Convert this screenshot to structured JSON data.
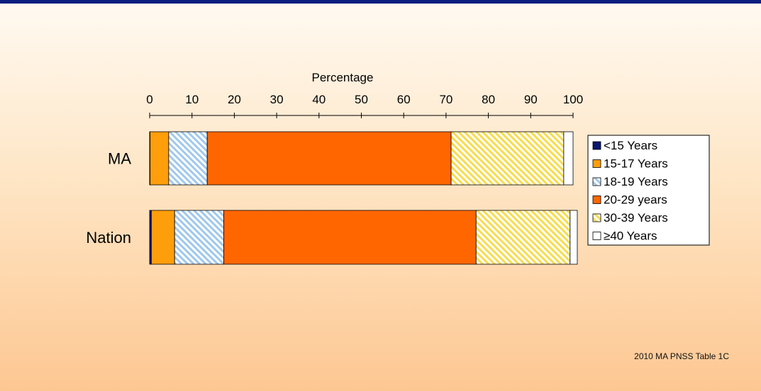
{
  "source_note": "2010 MA PNSS Table 1C",
  "colors": {
    "under_15": "#0a1670",
    "age_15_17": "#ff9e0b",
    "age_18_19": "#9fc8ee",
    "age_20_29": "#ff6600",
    "age_30_39": "#f7dc4d",
    "age_40_plus": "#ffffff"
  },
  "chart_data": {
    "type": "bar",
    "orientation": "horizontal",
    "stacked": true,
    "xlabel": "Percentage",
    "xlim": [
      0,
      100
    ],
    "x_ticks": [
      "0",
      "10",
      "20",
      "30",
      "40",
      "50",
      "60",
      "70",
      "80",
      "90",
      "100"
    ],
    "categories": [
      "MA",
      "Nation"
    ],
    "legend_position": "right",
    "series": [
      {
        "name": "<15 Years",
        "key": "under_15",
        "pattern": "solid",
        "values": [
          0.1,
          0.4
        ]
      },
      {
        "name": "15-17 Years",
        "key": "age_15_17",
        "pattern": "solid",
        "values": [
          4.4,
          5.5
        ]
      },
      {
        "name": "18-19 Years",
        "key": "age_18_19",
        "pattern": "hatch",
        "values": [
          9.1,
          11.6
        ]
      },
      {
        "name": "20-29 years",
        "key": "age_20_29",
        "pattern": "solid",
        "values": [
          57.6,
          59.6
        ]
      },
      {
        "name": "30-39 Years",
        "key": "age_30_39",
        "pattern": "hatch",
        "values": [
          26.6,
          22.2
        ]
      },
      {
        "name": "≥40 Years",
        "key": "age_40_plus",
        "pattern": "solid",
        "values": [
          2.2,
          1.7
        ]
      }
    ]
  }
}
